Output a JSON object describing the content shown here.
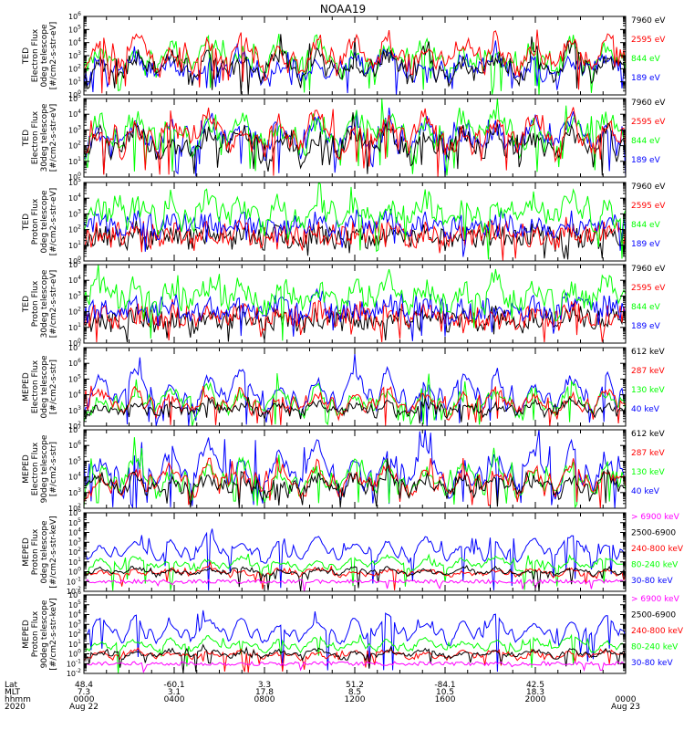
{
  "title": "NOAA19",
  "chart_data": {
    "type": "line",
    "title": "NOAA19",
    "x_start": "Aug 22 2020 00:00",
    "x_end": "Aug 23 00:00",
    "panels": [
      {
        "ylabel": [
          "TED",
          "Electron Flux",
          "0deg telescope",
          "[#/cm2-s-str-eV]"
        ],
        "ylog": [
          0,
          6
        ],
        "legend": [
          {
            "label": "7960 eV",
            "color": "#000000"
          },
          {
            "label": "2595 eV",
            "color": "#ff0000"
          },
          {
            "label": "844 eV",
            "color": "#00ff00"
          },
          {
            "label": "189 eV",
            "color": "#0000ff"
          }
        ],
        "draw_order": [
          2,
          3,
          0,
          1
        ],
        "base": [
          0.8,
          1.3,
          1.3,
          1.0
        ],
        "amp": [
          2.8,
          3.4,
          3.0,
          2.2
        ],
        "noise": 0.6
      },
      {
        "ylabel": [
          "TED",
          "Electron Flux",
          "30deg telescope",
          "[#/cm2-s-str-eV]"
        ],
        "ylog": [
          0,
          5
        ],
        "legend": [
          {
            "label": "7960 eV",
            "color": "#000000"
          },
          {
            "label": "2595 eV",
            "color": "#ff0000"
          },
          {
            "label": "844 eV",
            "color": "#00ff00"
          },
          {
            "label": "189 eV",
            "color": "#0000ff"
          }
        ],
        "draw_order": [
          3,
          2,
          0,
          1
        ],
        "base": [
          0.8,
          1.2,
          1.4,
          1.3
        ],
        "amp": [
          2.5,
          3.0,
          2.8,
          2.6
        ],
        "noise": 0.6
      },
      {
        "ylabel": [
          "TED",
          "Proton Flux",
          "0deg telescope",
          "[#/cm2-s-str-eV]"
        ],
        "ylog": [
          0,
          5
        ],
        "legend": [
          {
            "label": "7960 eV",
            "color": "#000000"
          },
          {
            "label": "2595 eV",
            "color": "#ff0000"
          },
          {
            "label": "844 eV",
            "color": "#00ff00"
          },
          {
            "label": "189 eV",
            "color": "#0000ff"
          }
        ],
        "draw_order": [
          0,
          1,
          3,
          2
        ],
        "base": [
          1.2,
          1.3,
          2.0,
          1.8
        ],
        "amp": [
          0.6,
          0.8,
          2.2,
          1.0
        ],
        "noise": 0.7
      },
      {
        "ylabel": [
          "TED",
          "Proton Flux",
          "30deg telescope",
          "[#/cm2-s-str-eV]"
        ],
        "ylog": [
          0,
          5
        ],
        "legend": [
          {
            "label": "7960 eV",
            "color": "#000000"
          },
          {
            "label": "2595 eV",
            "color": "#ff0000"
          },
          {
            "label": "844 eV",
            "color": "#00ff00"
          },
          {
            "label": "189 eV",
            "color": "#0000ff"
          }
        ],
        "draw_order": [
          0,
          1,
          3,
          2
        ],
        "base": [
          1.2,
          1.3,
          1.9,
          1.7
        ],
        "amp": [
          0.6,
          0.8,
          2.3,
          1.0
        ],
        "noise": 0.7
      },
      {
        "ylabel": [
          "MEPED",
          "Electron Flux",
          "0deg telescope",
          "[#/cm2-s-str]"
        ],
        "ylog": [
          2,
          7
        ],
        "legend": [
          {
            "label": "612 keV",
            "color": "#000000"
          },
          {
            "label": "287 keV",
            "color": "#ff0000"
          },
          {
            "label": "130 keV",
            "color": "#00ff00"
          },
          {
            "label": "40 keV",
            "color": "#0000ff"
          }
        ],
        "draw_order": [
          3,
          2,
          1,
          0
        ],
        "base": [
          2.6,
          2.5,
          2.4,
          2.4
        ],
        "amp": [
          1.0,
          2.0,
          2.3,
          3.4
        ],
        "noise": 0.3
      },
      {
        "ylabel": [
          "MEPED",
          "Electron Flux",
          "90deg telescope",
          "[#/cm2-s-str]"
        ],
        "ylog": [
          2,
          7
        ],
        "legend": [
          {
            "label": "612 keV",
            "color": "#000000"
          },
          {
            "label": "287 keV",
            "color": "#ff0000"
          },
          {
            "label": "130 keV",
            "color": "#00ff00"
          },
          {
            "label": "40 keV",
            "color": "#0000ff"
          }
        ],
        "draw_order": [
          3,
          2,
          1,
          0
        ],
        "base": [
          2.7,
          2.6,
          2.5,
          2.5
        ],
        "amp": [
          1.6,
          2.4,
          2.7,
          3.8
        ],
        "noise": 0.4
      },
      {
        "ylabel": [
          "MEPED",
          "Proton Flux",
          "0deg telescope",
          "[#/cm2-s-str-keV]"
        ],
        "ylog": [
          -2,
          6
        ],
        "legend": [
          {
            "label": "> 6900 keV",
            "color": "#ff00ff"
          },
          {
            "label": "2500-6900",
            "color": "#000000"
          },
          {
            "label": "240-800 keV",
            "color": "#ff0000"
          },
          {
            "label": "80-240 keV",
            "color": "#00ff00"
          },
          {
            "label": "30-80 keV",
            "color": "#0000ff"
          }
        ],
        "draw_order": [
          4,
          3,
          2,
          1,
          0
        ],
        "base": [
          -1.0,
          -0.5,
          -0.6,
          0.0,
          0.6
        ],
        "amp": [
          0.0,
          1.0,
          1.0,
          1.6,
          3.2
        ],
        "noise": 0.2
      },
      {
        "ylabel": [
          "MEPED",
          "Proton Flux",
          "90deg telescope",
          "[#/cm2-s-str-keV]"
        ],
        "ylog": [
          -2,
          6
        ],
        "legend": [
          {
            "label": "> 6900 keV",
            "color": "#ff00ff"
          },
          {
            "label": "2500-6900",
            "color": "#000000"
          },
          {
            "label": "240-800 keV",
            "color": "#ff0000"
          },
          {
            "label": "80-240 keV",
            "color": "#00ff00"
          },
          {
            "label": "30-80 keV",
            "color": "#0000ff"
          }
        ],
        "draw_order": [
          4,
          3,
          2,
          1,
          0
        ],
        "base": [
          -1.0,
          -0.5,
          -0.6,
          0.0,
          0.6
        ],
        "amp": [
          0.0,
          1.0,
          1.0,
          1.8,
          3.6
        ],
        "noise": 0.2
      }
    ],
    "passes": [
      0.03,
      0.095,
      0.16,
      0.23,
      0.29,
      0.36,
      0.43,
      0.5,
      0.56,
      0.63,
      0.7,
      0.76,
      0.83,
      0.9,
      0.965
    ],
    "footer": {
      "row_labels": [
        "Lat",
        "MLT",
        "hhmm",
        "2020"
      ],
      "columns": [
        {
          "f": 0.0,
          "values": [
            "48.4",
            "7.3",
            "0000",
            "Aug 22"
          ]
        },
        {
          "f": 0.1667,
          "values": [
            "-60.1",
            "3.1",
            "0400",
            ""
          ]
        },
        {
          "f": 0.3333,
          "values": [
            "3.3",
            "17.8",
            "0800",
            ""
          ]
        },
        {
          "f": 0.5,
          "values": [
            "51.2",
            "8.5",
            "1200",
            ""
          ]
        },
        {
          "f": 0.6667,
          "values": [
            "-84.1",
            "10.5",
            "1600",
            ""
          ]
        },
        {
          "f": 0.8333,
          "values": [
            "42.5",
            "18.3",
            "2000",
            ""
          ]
        },
        {
          "f": 1.0,
          "values": [
            "",
            "",
            "0000",
            "Aug 23"
          ]
        }
      ]
    }
  }
}
